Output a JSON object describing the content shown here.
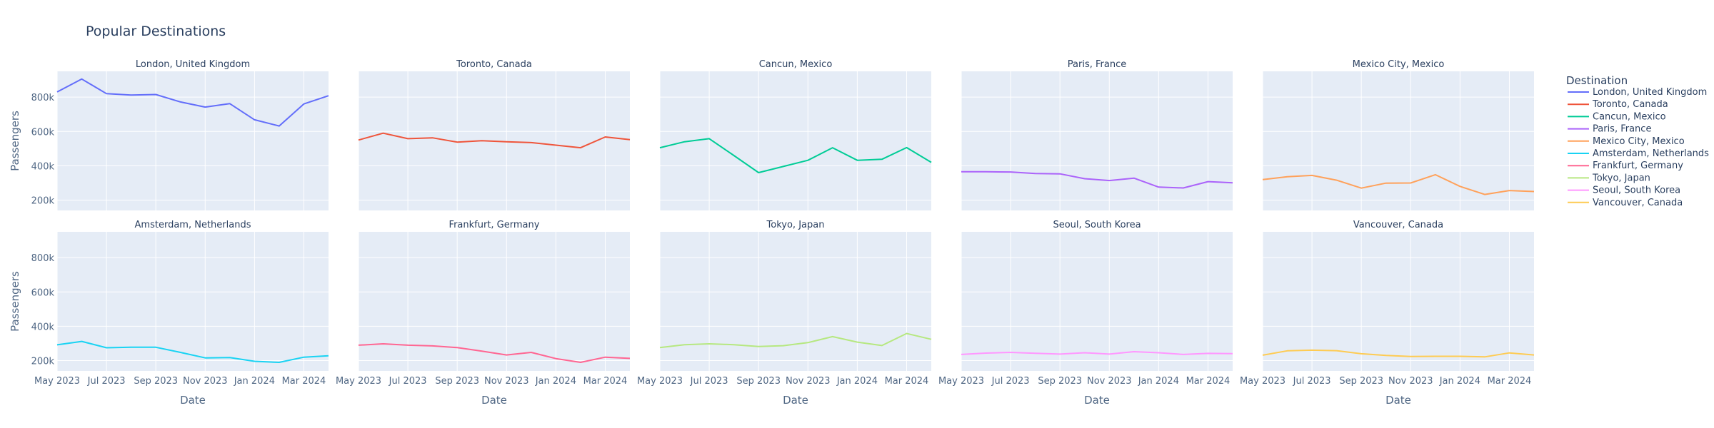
{
  "chart_data": {
    "type": "line",
    "title": "Popular Destinations",
    "xlabel": "Date",
    "ylabel": "Passengers",
    "x": [
      "2023-05",
      "2023-06",
      "2023-07",
      "2023-08",
      "2023-09",
      "2023-10",
      "2023-11",
      "2023-12",
      "2024-01",
      "2024-02",
      "2024-03",
      "2024-04"
    ],
    "x_tick_labels": [
      "May 2023",
      "Jul 2023",
      "Sep 2023",
      "Nov 2023",
      "Jan 2024",
      "Mar 2024"
    ],
    "x_tick_values": [
      "2023-05",
      "2023-07",
      "2023-09",
      "2023-11",
      "2024-01",
      "2024-03"
    ],
    "y_tick_values": [
      200000,
      400000,
      600000,
      800000
    ],
    "y_tick_labels": [
      "200k",
      "400k",
      "600k",
      "800k"
    ],
    "ylim": [
      140000,
      950000
    ],
    "grid": true,
    "layout": {
      "rows": 2,
      "cols": 5,
      "shared_y": true,
      "shared_x": true
    },
    "legend": {
      "title": "Destination",
      "placement": "right"
    },
    "series": [
      {
        "name": "London, United Kingdom",
        "color": "#636efa",
        "values": [
          830000,
          905000,
          820000,
          812000,
          815000,
          772000,
          742000,
          762000,
          668000,
          632000,
          760000,
          808000
        ]
      },
      {
        "name": "Toronto, Canada",
        "color": "#EF553B",
        "values": [
          550000,
          590000,
          558000,
          563000,
          538000,
          546000,
          540000,
          535000,
          520000,
          505000,
          568000,
          552000
        ]
      },
      {
        "name": "Cancun, Mexico",
        "color": "#00cc96",
        "values": [
          505000,
          540000,
          558000,
          460000,
          360000,
          396000,
          432000,
          505000,
          432000,
          438000,
          506000,
          420000
        ]
      },
      {
        "name": "Paris, France",
        "color": "#ab63fa",
        "values": [
          365000,
          365000,
          364000,
          355000,
          353000,
          325000,
          314000,
          328000,
          276000,
          271000,
          308000,
          301000
        ]
      },
      {
        "name": "Mexico City, Mexico",
        "color": "#FFA15A",
        "values": [
          320000,
          336000,
          344000,
          316000,
          270000,
          299000,
          300000,
          348000,
          280000,
          233000,
          256000,
          250000
        ]
      },
      {
        "name": "Amsterdam, Netherlands",
        "color": "#19d3f3",
        "values": [
          292000,
          312000,
          275000,
          278000,
          278000,
          248000,
          216000,
          218000,
          196000,
          190000,
          220000,
          228000
        ]
      },
      {
        "name": "Frankfurt, Germany",
        "color": "#FF6692",
        "values": [
          290000,
          298000,
          290000,
          286000,
          276000,
          255000,
          233000,
          248000,
          212000,
          190000,
          220000,
          213000
        ]
      },
      {
        "name": "Tokyo, Japan",
        "color": "#B6E880",
        "values": [
          276000,
          293000,
          298000,
          293000,
          282000,
          287000,
          305000,
          340000,
          308000,
          288000,
          358000,
          324000
        ]
      },
      {
        "name": "Seoul, South Korea",
        "color": "#FF97FF",
        "values": [
          236000,
          244000,
          248000,
          243000,
          238000,
          246000,
          238000,
          252000,
          246000,
          236000,
          242000,
          241000
        ]
      },
      {
        "name": "Vancouver, Canada",
        "color": "#FECB52",
        "values": [
          232000,
          257000,
          261000,
          258000,
          240000,
          230000,
          224000,
          225000,
          225000,
          222000,
          245000,
          233000
        ]
      }
    ]
  }
}
